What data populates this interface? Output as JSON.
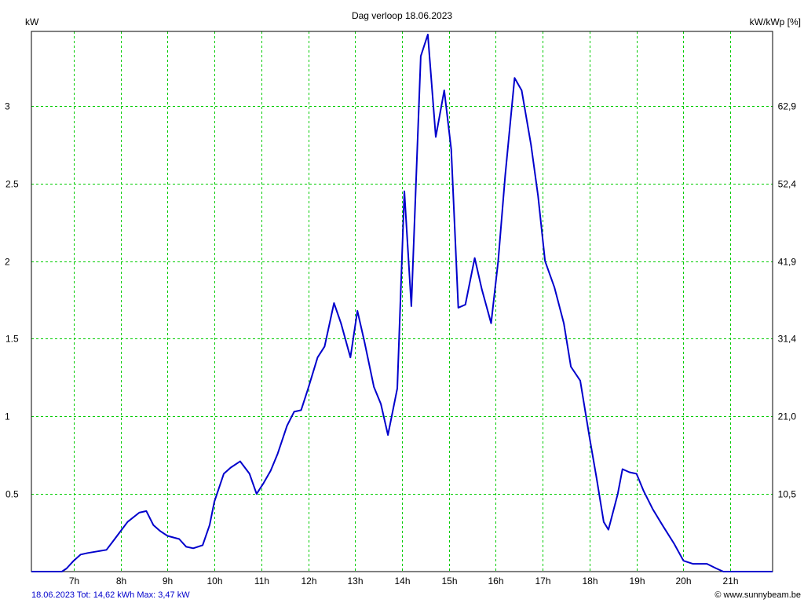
{
  "chart_data": {
    "type": "line",
    "title": "Dag  verloop 18.06.2023",
    "ylabel": "kW",
    "y2label": "kW/kWp [%]",
    "x_ticks": [
      "7h",
      "8h",
      "9h",
      "10h",
      "11h",
      "12h",
      "13h",
      "14h",
      "15h",
      "16h",
      "17h",
      "18h",
      "19h",
      "20h",
      "21h"
    ],
    "xlim": [
      6.1,
      21.9
    ],
    "ylim": [
      0,
      3.48
    ],
    "y_ticks": [
      {
        "value": 0.5,
        "label": "0.5"
      },
      {
        "value": 1,
        "label": "1"
      },
      {
        "value": 1.5,
        "label": "1.5"
      },
      {
        "value": 2,
        "label": "2"
      },
      {
        "value": 2.5,
        "label": "2.5"
      },
      {
        "value": 3,
        "label": "3"
      }
    ],
    "y2_ticks": [
      {
        "value": 0.5,
        "label": "10,5"
      },
      {
        "value": 1,
        "label": "21,0"
      },
      {
        "value": 1.5,
        "label": "31,4"
      },
      {
        "value": 2,
        "label": "41,9"
      },
      {
        "value": 2.5,
        "label": "52,4"
      },
      {
        "value": 3,
        "label": "62,9"
      }
    ],
    "grid": true,
    "grid_color": "#00cc00",
    "line_color": "#0000cc",
    "series": [
      {
        "values": [
          [
            6.1,
            0
          ],
          [
            6.75,
            0
          ],
          [
            6.85,
            0.02
          ],
          [
            7.0,
            0.07
          ],
          [
            7.15,
            0.11
          ],
          [
            7.3,
            0.12
          ],
          [
            7.5,
            0.13
          ],
          [
            7.7,
            0.14
          ],
          [
            7.85,
            0.2
          ],
          [
            8.0,
            0.26
          ],
          [
            8.15,
            0.32
          ],
          [
            8.4,
            0.38
          ],
          [
            8.55,
            0.39
          ],
          [
            8.7,
            0.3
          ],
          [
            8.85,
            0.26
          ],
          [
            9.0,
            0.23
          ],
          [
            9.25,
            0.21
          ],
          [
            9.4,
            0.16
          ],
          [
            9.55,
            0.15
          ],
          [
            9.75,
            0.17
          ],
          [
            9.9,
            0.3
          ],
          [
            10.0,
            0.45
          ],
          [
            10.2,
            0.63
          ],
          [
            10.35,
            0.67
          ],
          [
            10.55,
            0.71
          ],
          [
            10.75,
            0.63
          ],
          [
            10.9,
            0.5
          ],
          [
            11.05,
            0.57
          ],
          [
            11.2,
            0.65
          ],
          [
            11.35,
            0.76
          ],
          [
            11.55,
            0.94
          ],
          [
            11.7,
            1.03
          ],
          [
            11.85,
            1.04
          ],
          [
            12.0,
            1.18
          ],
          [
            12.2,
            1.38
          ],
          [
            12.35,
            1.45
          ],
          [
            12.55,
            1.73
          ],
          [
            12.7,
            1.6
          ],
          [
            12.9,
            1.38
          ],
          [
            13.05,
            1.68
          ],
          [
            13.2,
            1.48
          ],
          [
            13.4,
            1.19
          ],
          [
            13.55,
            1.08
          ],
          [
            13.7,
            0.88
          ],
          [
            13.9,
            1.18
          ],
          [
            14.05,
            2.45
          ],
          [
            14.2,
            1.71
          ],
          [
            14.4,
            3.32
          ],
          [
            14.55,
            3.46
          ],
          [
            14.72,
            2.8
          ],
          [
            14.9,
            3.1
          ],
          [
            15.05,
            2.72
          ],
          [
            15.2,
            1.7
          ],
          [
            15.35,
            1.72
          ],
          [
            15.55,
            2.02
          ],
          [
            15.7,
            1.82
          ],
          [
            15.9,
            1.6
          ],
          [
            16.05,
            2.0
          ],
          [
            16.2,
            2.55
          ],
          [
            16.4,
            3.18
          ],
          [
            16.55,
            3.1
          ],
          [
            16.75,
            2.75
          ],
          [
            16.9,
            2.42
          ],
          [
            17.05,
            2.0
          ],
          [
            17.25,
            1.83
          ],
          [
            17.45,
            1.6
          ],
          [
            17.6,
            1.32
          ],
          [
            17.8,
            1.23
          ],
          [
            18.0,
            0.86
          ],
          [
            18.15,
            0.6
          ],
          [
            18.3,
            0.32
          ],
          [
            18.4,
            0.27
          ],
          [
            18.6,
            0.5
          ],
          [
            18.7,
            0.66
          ],
          [
            18.85,
            0.64
          ],
          [
            19.0,
            0.63
          ],
          [
            19.15,
            0.52
          ],
          [
            19.35,
            0.4
          ],
          [
            19.55,
            0.3
          ],
          [
            19.8,
            0.18
          ],
          [
            20.0,
            0.07
          ],
          [
            20.2,
            0.05
          ],
          [
            20.5,
            0.05
          ],
          [
            20.7,
            0.02
          ],
          [
            20.85,
            0
          ],
          [
            21.9,
            0
          ]
        ]
      }
    ]
  },
  "footer": {
    "left": "18.06.2023 Tot: 14,62 kWh Max: 3,47 kW",
    "right": "© www.sunnybeam.be",
    "left_color": "#0000cc",
    "right_color": "#000000"
  }
}
